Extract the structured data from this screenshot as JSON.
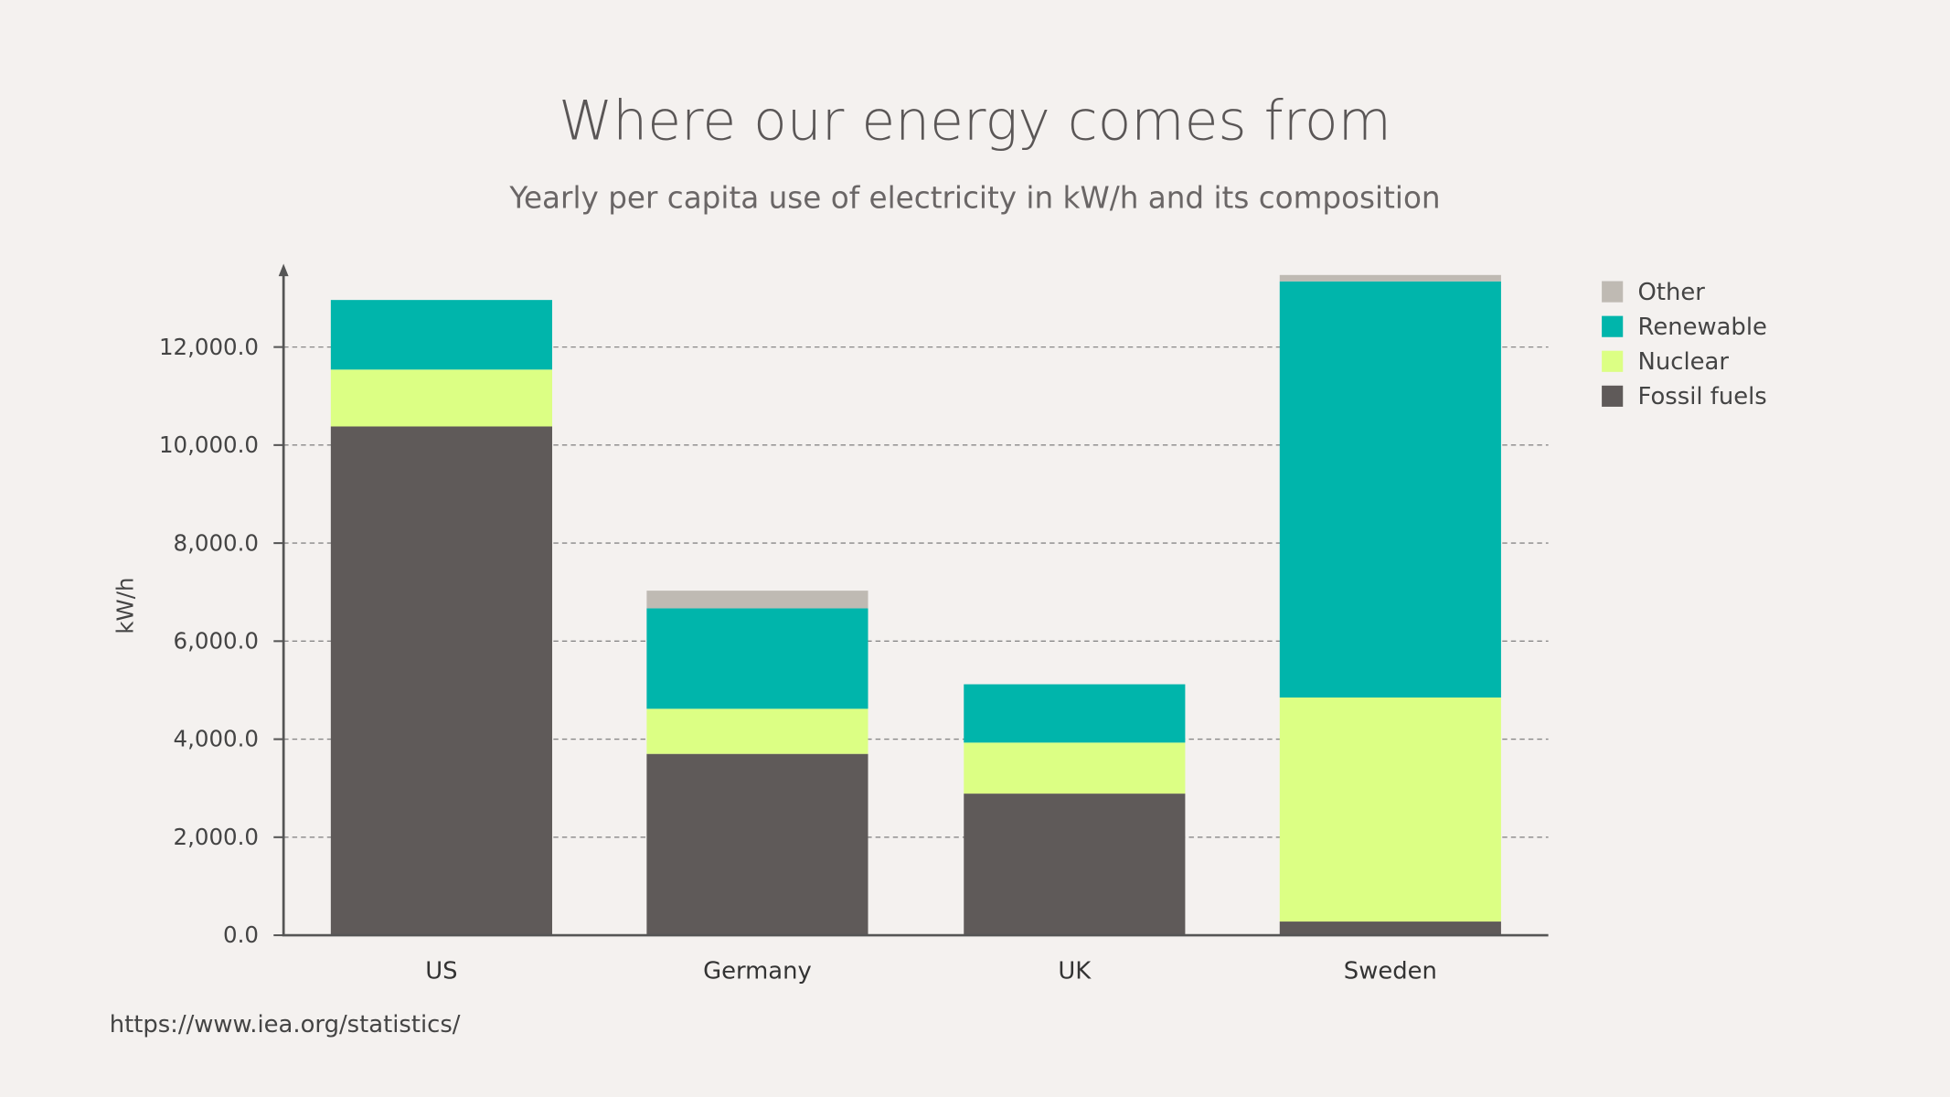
{
  "chart_data": {
    "type": "bar",
    "stacked": true,
    "title": "Where our energy comes from",
    "subtitle": "Yearly per capita use of electricity in kW/h and its composition",
    "xlabel": "",
    "ylabel": "kW/h",
    "ylim": [
      0,
      13500
    ],
    "yticks": [
      "0.0",
      "2,000.0",
      "4,000.0",
      "6,000.0",
      "8,000.0",
      "10,000.0",
      "12,000.0"
    ],
    "ytick_values": [
      0,
      2000,
      4000,
      6000,
      8000,
      10000,
      12000
    ],
    "grid": true,
    "legend_position": "right",
    "categories": [
      "US",
      "Germany",
      "UK",
      "Sweden"
    ],
    "series": [
      {
        "name": "Fossil fuels",
        "color": "#5f5a59",
        "values": [
          10380,
          3700,
          2890,
          280
        ]
      },
      {
        "name": "Nuclear",
        "color": "#dcff84",
        "values": [
          1160,
          920,
          1040,
          4570
        ]
      },
      {
        "name": "Renewable",
        "color": "#00b5ab",
        "values": [
          1420,
          2050,
          1190,
          8490
        ]
      },
      {
        "name": "Other",
        "color": "#bfbab3",
        "values": [
          0,
          360,
          0,
          130
        ]
      }
    ],
    "source": "https://www.iea.org/statistics/"
  }
}
